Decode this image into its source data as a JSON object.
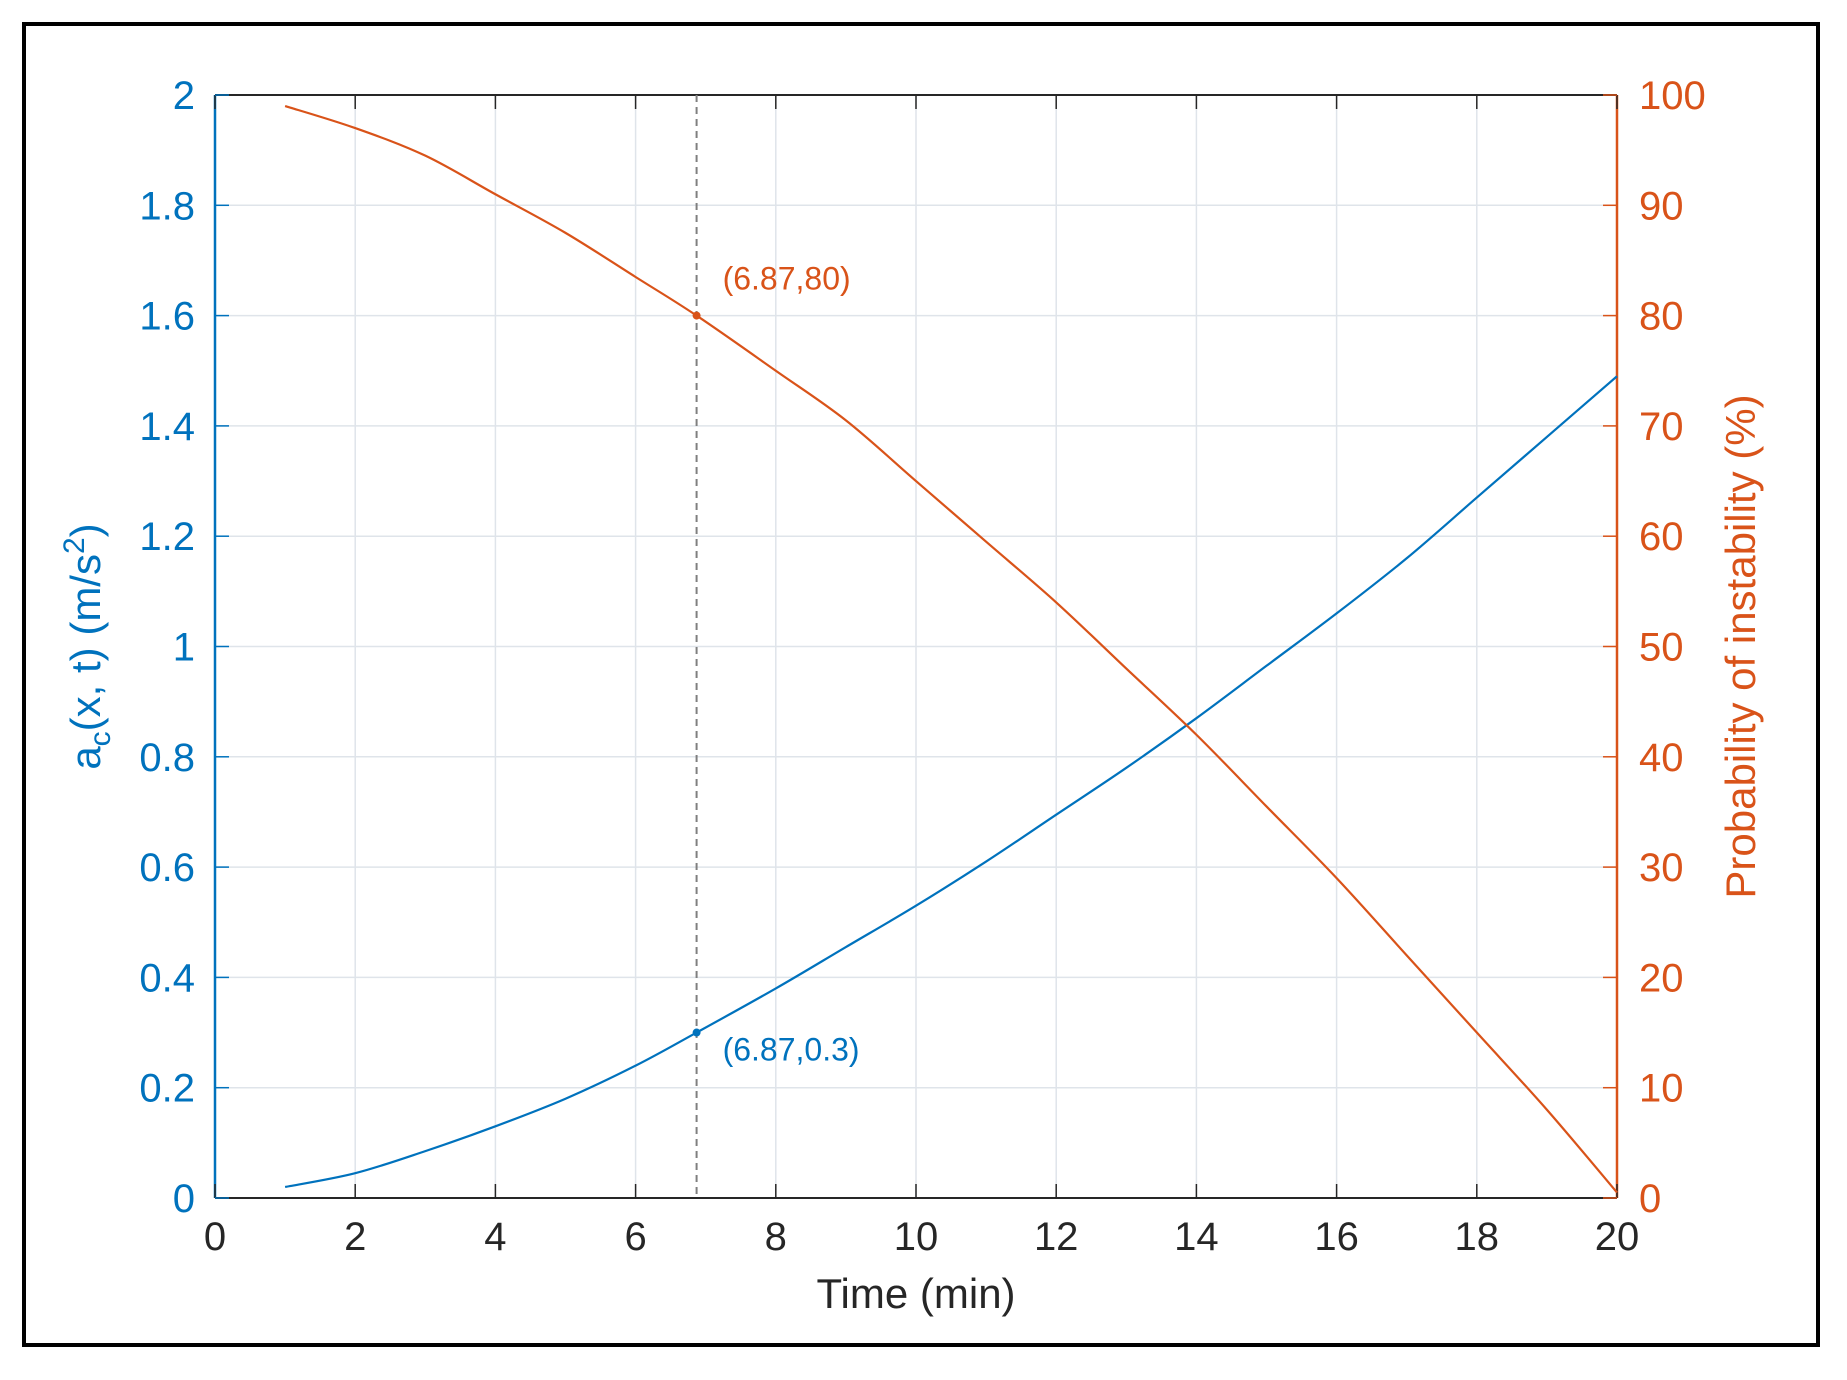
{
  "chart_data": {
    "type": "line",
    "xlabel": "Time (min)",
    "ylabel_left": {
      "main": "a",
      "sub": "c",
      "rest": "(x, t) (m/s",
      "sup": "2",
      "end": ")"
    },
    "ylabel_right": "Probability of instability (%)",
    "xlim": [
      0,
      20
    ],
    "ylim_left": [
      0,
      2
    ],
    "ylim_right": [
      0,
      100
    ],
    "x_ticks": [
      "0",
      "2",
      "4",
      "6",
      "8",
      "10",
      "12",
      "14",
      "16",
      "18",
      "20"
    ],
    "y_left_ticks": [
      "0",
      "0.2",
      "0.4",
      "0.6",
      "0.8",
      "1",
      "1.2",
      "1.4",
      "1.6",
      "1.8",
      "2"
    ],
    "y_right_ticks": [
      "0",
      "10",
      "20",
      "30",
      "40",
      "50",
      "60",
      "70",
      "80",
      "90",
      "100"
    ],
    "grid": true,
    "series": [
      {
        "axis": "left",
        "color": "#0072BD",
        "x": [
          1,
          2,
          3,
          4,
          5,
          6,
          6.87,
          8,
          9,
          10,
          11,
          12,
          13,
          14,
          15,
          16,
          17,
          18,
          19,
          20
        ],
        "y": [
          0.02,
          0.045,
          0.085,
          0.13,
          0.18,
          0.24,
          0.3,
          0.38,
          0.455,
          0.53,
          0.61,
          0.695,
          0.78,
          0.87,
          0.965,
          1.06,
          1.16,
          1.27,
          1.38,
          1.49
        ]
      },
      {
        "axis": "right",
        "color": "#D95319",
        "x": [
          1,
          2,
          3,
          4,
          5,
          6,
          6.87,
          8,
          9,
          10,
          11,
          12,
          13,
          14,
          15,
          16,
          17,
          18,
          19,
          20
        ],
        "y": [
          99,
          97,
          94.5,
          91,
          87.5,
          83.5,
          80,
          75,
          70.5,
          65,
          59.5,
          54,
          48,
          42,
          35.5,
          29,
          22,
          15,
          8,
          0.5
        ]
      }
    ],
    "reference_line": {
      "x": 6.87,
      "style": "dashed",
      "color": "#7f7f7f"
    },
    "annotations": [
      {
        "text": "(6.87,80)",
        "x": 6.87,
        "y": 80,
        "axis": "right",
        "color": "#D95319"
      },
      {
        "text": "(6.87,0.3)",
        "x": 6.87,
        "y": 0.3,
        "axis": "left",
        "color": "#0072BD"
      }
    ],
    "colors": {
      "left_axis": "#0072BD",
      "right_axis": "#D95319",
      "bottom_axis": "#262626",
      "grid": "#dfe4ea"
    }
  }
}
